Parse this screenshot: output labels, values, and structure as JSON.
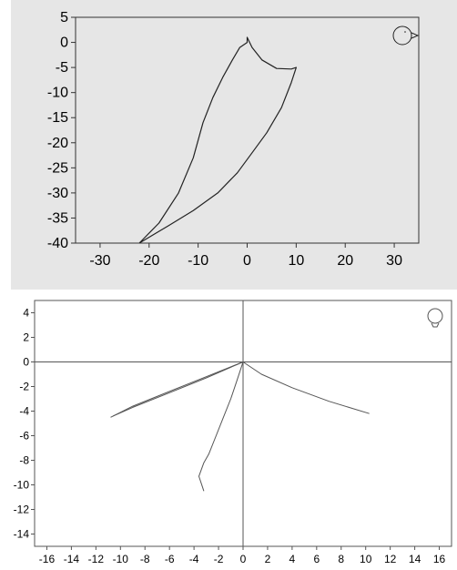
{
  "chart_data": [
    {
      "type": "line",
      "panel": "top",
      "background": "#e6e6e6",
      "plot_background": "#e6e6e6",
      "line_color": "#222222",
      "xlim": [
        -35,
        35
      ],
      "ylim": [
        -40,
        5
      ],
      "xticks": [
        -30,
        -20,
        -10,
        0,
        10,
        20,
        30
      ],
      "yticks": [
        5,
        0,
        -5,
        -10,
        -15,
        -20,
        -25,
        -30,
        -35,
        -40
      ],
      "x_tick_labels": [
        "-30",
        "-20",
        "-10",
        "0",
        "10",
        "20",
        "30"
      ],
      "y_tick_labels": [
        "5",
        "0",
        "-5",
        "-10",
        "-15",
        "-20",
        "-25",
        "-30",
        "-35",
        "-40"
      ],
      "grid": false,
      "series": [
        {
          "x": [
            -22,
            -18,
            -14,
            -11,
            -9,
            -7,
            -5,
            -3,
            -1.5,
            0,
            0,
            1,
            3,
            6,
            9,
            10,
            9,
            7,
            4,
            1,
            -2,
            -6,
            -11,
            -16,
            -22
          ],
          "y": [
            -40,
            -36,
            -30,
            -23,
            -16,
            -11,
            -7,
            -3.5,
            -1,
            0,
            1,
            -1,
            -3.5,
            -5.2,
            -5.3,
            -5,
            -8,
            -13,
            -18,
            -22,
            -26,
            -30,
            -33.5,
            -36.5,
            -40
          ]
        }
      ],
      "icon": "head-top-view-icon"
    },
    {
      "type": "line",
      "panel": "bottom",
      "background": "#ffffff",
      "line_color": "#555555",
      "xlim": [
        -17,
        17
      ],
      "ylim": [
        -15,
        5
      ],
      "xticks": [
        -16,
        -14,
        -12,
        -10,
        -8,
        -6,
        -4,
        -2,
        0,
        2,
        4,
        6,
        8,
        10,
        12,
        14,
        16
      ],
      "yticks": [
        4,
        2,
        0,
        -2,
        -4,
        -6,
        -8,
        -10,
        -12,
        -14
      ],
      "x_tick_labels": [
        "-16",
        "-14",
        "-12",
        "-10",
        "-8",
        "-6",
        "-4",
        "-2",
        "0",
        "2",
        "4",
        "6",
        "8",
        "10",
        "12",
        "14",
        "16"
      ],
      "y_tick_labels": [
        "4",
        "2",
        "0",
        "-2",
        "-4",
        "-6",
        "-8",
        "-10",
        "-12",
        "-14"
      ],
      "grid": false,
      "axes_through_origin": true,
      "series": [
        {
          "x": [
            0,
            -3,
            -6,
            -9,
            -10.8
          ],
          "y": [
            0,
            -1.2,
            -2.4,
            -3.6,
            -4.5
          ]
        },
        {
          "x": [
            0,
            -3,
            -6,
            -9,
            -10.6
          ],
          "y": [
            0,
            -1.3,
            -2.5,
            -3.7,
            -4.4
          ]
        },
        {
          "x": [
            0,
            1.5,
            4,
            7,
            10.3
          ],
          "y": [
            0,
            -1,
            -2.1,
            -3.2,
            -4.2
          ]
        },
        {
          "x": [
            0,
            -0.5,
            -1,
            -1.6,
            -2.2,
            -2.8,
            -3.2,
            -3.6,
            -3.4,
            -3.2
          ],
          "y": [
            0,
            -1.5,
            -3,
            -4.5,
            -6,
            -7.5,
            -8.2,
            -9.3,
            -9.9,
            -10.5
          ]
        }
      ],
      "icon": "head-front-view-icon"
    }
  ]
}
